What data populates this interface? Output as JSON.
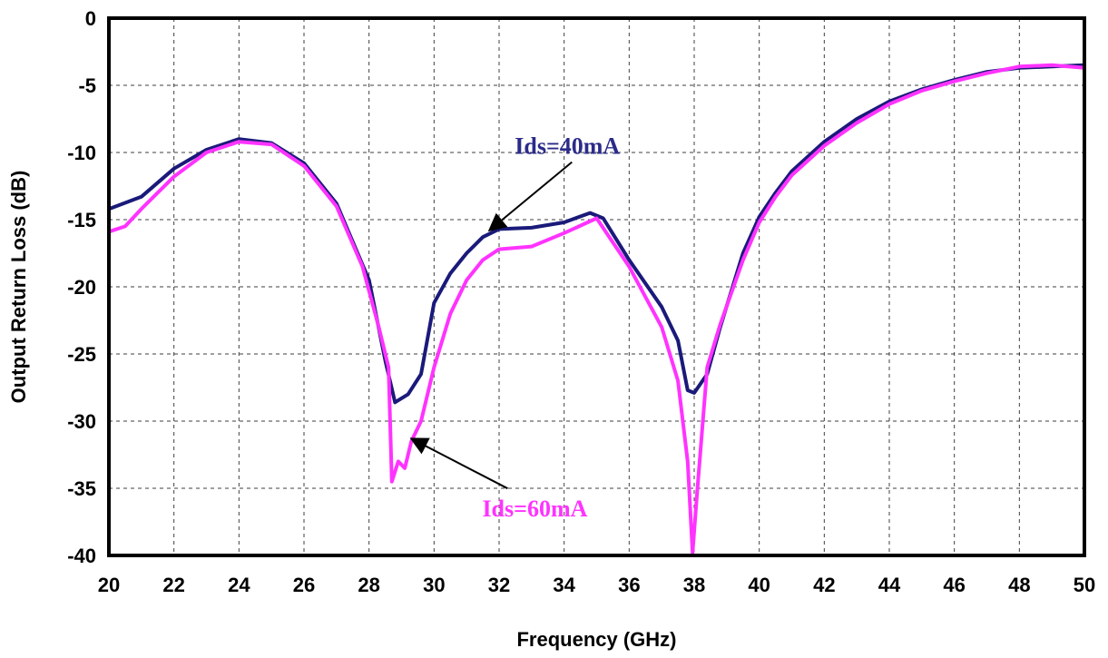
{
  "chart_data": {
    "type": "line",
    "xlabel": "Frequency (GHz)",
    "ylabel": "Output Return Loss (dB)",
    "xlim": [
      20,
      50
    ],
    "ylim": [
      -40,
      0
    ],
    "xticks": [
      20,
      22,
      24,
      26,
      28,
      30,
      32,
      34,
      36,
      38,
      40,
      42,
      44,
      46,
      48,
      50
    ],
    "yticks": [
      0,
      -5,
      -10,
      -15,
      -20,
      -25,
      -30,
      -35,
      -40
    ],
    "grid": true,
    "series": [
      {
        "name": "Ids=40mA",
        "color": "#1a1a7a",
        "points": [
          [
            20,
            -14.2
          ],
          [
            21,
            -13.3
          ],
          [
            22,
            -11.2
          ],
          [
            23,
            -9.8
          ],
          [
            24,
            -9.0
          ],
          [
            25,
            -9.3
          ],
          [
            26,
            -10.8
          ],
          [
            27,
            -13.8
          ],
          [
            28,
            -19.5
          ],
          [
            28.5,
            -25.5
          ],
          [
            28.8,
            -28.6
          ],
          [
            29.2,
            -28.0
          ],
          [
            29.6,
            -26.5
          ],
          [
            30,
            -21.2
          ],
          [
            30.5,
            -19.0
          ],
          [
            31,
            -17.5
          ],
          [
            31.5,
            -16.3
          ],
          [
            32,
            -15.7
          ],
          [
            33,
            -15.6
          ],
          [
            34,
            -15.2
          ],
          [
            34.8,
            -14.5
          ],
          [
            35.2,
            -14.9
          ],
          [
            36,
            -18.0
          ],
          [
            37,
            -21.5
          ],
          [
            37.5,
            -24.0
          ],
          [
            37.8,
            -27.7
          ],
          [
            38,
            -27.9
          ],
          [
            38.4,
            -26.5
          ],
          [
            38.8,
            -23.0
          ],
          [
            39.5,
            -17.5
          ],
          [
            40,
            -14.8
          ],
          [
            40.5,
            -13.0
          ],
          [
            41,
            -11.4
          ],
          [
            42,
            -9.2
          ],
          [
            43,
            -7.5
          ],
          [
            44,
            -6.2
          ],
          [
            45,
            -5.3
          ],
          [
            46,
            -4.6
          ],
          [
            47,
            -4.0
          ],
          [
            48,
            -3.7
          ],
          [
            49,
            -3.6
          ],
          [
            50,
            -3.5
          ]
        ]
      },
      {
        "name": "Ids=60mA",
        "color": "#ff33ff",
        "points": [
          [
            20,
            -15.9
          ],
          [
            20.5,
            -15.5
          ],
          [
            21,
            -14.2
          ],
          [
            22,
            -11.8
          ],
          [
            23,
            -10.0
          ],
          [
            24,
            -9.2
          ],
          [
            25,
            -9.4
          ],
          [
            26,
            -11.0
          ],
          [
            27,
            -14.0
          ],
          [
            27.8,
            -18.5
          ],
          [
            28.3,
            -23.0
          ],
          [
            28.6,
            -26.0
          ],
          [
            28.7,
            -34.5
          ],
          [
            28.9,
            -33.0
          ],
          [
            29.1,
            -33.5
          ],
          [
            29.3,
            -31.5
          ],
          [
            29.6,
            -30.0
          ],
          [
            30,
            -26.0
          ],
          [
            30.5,
            -22.0
          ],
          [
            31,
            -19.5
          ],
          [
            31.5,
            -18.0
          ],
          [
            32,
            -17.2
          ],
          [
            33,
            -17.0
          ],
          [
            34,
            -16.0
          ],
          [
            35,
            -14.9
          ],
          [
            36,
            -18.5
          ],
          [
            37,
            -23.0
          ],
          [
            37.5,
            -27.0
          ],
          [
            37.8,
            -33.0
          ],
          [
            37.95,
            -39.8
          ],
          [
            38.1,
            -35.0
          ],
          [
            38.4,
            -26.0
          ],
          [
            38.8,
            -22.8
          ],
          [
            39.5,
            -18.0
          ],
          [
            40,
            -15.2
          ],
          [
            40.5,
            -13.3
          ],
          [
            41,
            -11.7
          ],
          [
            42,
            -9.5
          ],
          [
            43,
            -7.8
          ],
          [
            44,
            -6.4
          ],
          [
            45,
            -5.4
          ],
          [
            46,
            -4.7
          ],
          [
            47,
            -4.1
          ],
          [
            48,
            -3.6
          ],
          [
            49,
            -3.5
          ],
          [
            50,
            -3.7
          ]
        ]
      }
    ],
    "annotations": [
      {
        "text": "Ids=40mA",
        "color": "#2b2b8a",
        "x": 34.1,
        "y": -9.5,
        "arrow_to": [
          31.7,
          -15.8
        ]
      },
      {
        "text": "Ids=60mA",
        "color": "#ff33ff",
        "x": 33.1,
        "y": -36.5,
        "arrow_to": [
          29.3,
          -31.3
        ]
      }
    ]
  }
}
